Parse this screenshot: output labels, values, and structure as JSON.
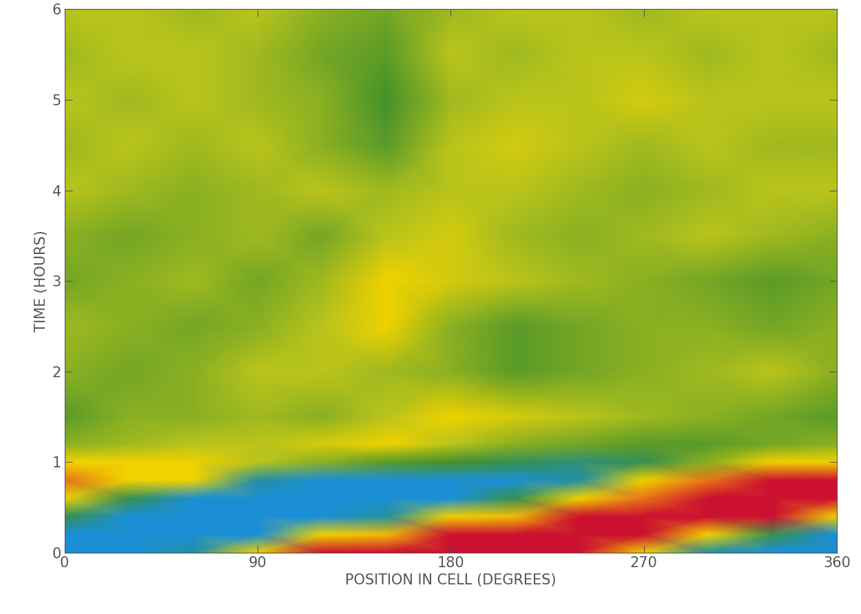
{
  "chart_data": {
    "type": "heatmap",
    "x_label": "POSITION IN CELL (DEGREES)",
    "y_label": "TIME (HOURS)",
    "xlim": [
      0,
      360
    ],
    "xticks": [
      0,
      90,
      180,
      270,
      360
    ],
    "ylim": [
      0,
      6
    ],
    "yticks": [
      0,
      1,
      2,
      3,
      4,
      5,
      6
    ],
    "x": [
      0,
      30,
      60,
      90,
      120,
      150,
      180,
      210,
      240,
      270,
      300,
      330,
      360
    ],
    "y": [
      0,
      0.2,
      0.4,
      0.6,
      0.8,
      1.0,
      1.2,
      1.5,
      2.0,
      2.5,
      3.0,
      3.5,
      4.0,
      4.5,
      5.0,
      5.5,
      6.0
    ],
    "color_range": [
      -1,
      1
    ],
    "cells": [
      [
        -1,
        -1,
        -0.5,
        0,
        0.6,
        1,
        1,
        1,
        0.6,
        0,
        -0.5,
        -1,
        -1
      ],
      [
        -0.7,
        -1,
        -1,
        -0.6,
        0,
        0.4,
        0.9,
        1,
        1,
        0.6,
        0,
        -0.4,
        -0.7
      ],
      [
        -0.4,
        -0.8,
        -1,
        -1,
        -0.9,
        -0.5,
        0,
        0.4,
        0.8,
        1,
        1,
        0.6,
        0
      ],
      [
        0,
        -0.4,
        -0.7,
        -0.85,
        -0.9,
        -0.9,
        -0.8,
        -0.4,
        0,
        0.5,
        0.85,
        0.9,
        0.6
      ],
      [
        0.5,
        0.2,
        0,
        -0.5,
        -0.8,
        -0.8,
        -0.8,
        -0.7,
        -0.5,
        0,
        0.5,
        0.8,
        0.8
      ],
      [
        0,
        0,
        0,
        -0.1,
        -0.2,
        -0.3,
        -0.35,
        -0.4,
        -0.45,
        -0.4,
        -0.2,
        0,
        0
      ],
      [
        -0.2,
        -0.15,
        -0.1,
        -0.1,
        -0.05,
        0,
        -0.1,
        -0.2,
        -0.25,
        -0.3,
        -0.3,
        -0.25,
        -0.2
      ],
      [
        -0.3,
        -0.2,
        -0.2,
        -0.15,
        -0.2,
        -0.1,
        0,
        -0.05,
        -0.1,
        -0.15,
        -0.2,
        -0.25,
        -0.3
      ],
      [
        -0.2,
        -0.25,
        -0.2,
        -0.1,
        -0.1,
        -0.15,
        -0.2,
        -0.3,
        -0.25,
        -0.2,
        -0.15,
        -0.1,
        -0.2
      ],
      [
        -0.15,
        -0.2,
        -0.25,
        -0.2,
        -0.1,
        0,
        -0.2,
        -0.3,
        -0.25,
        -0.2,
        -0.2,
        -0.25,
        -0.2
      ],
      [
        -0.25,
        -0.2,
        -0.15,
        -0.25,
        -0.15,
        0,
        -0.05,
        -0.1,
        -0.15,
        -0.2,
        -0.25,
        -0.3,
        -0.25
      ],
      [
        -0.2,
        -0.25,
        -0.2,
        -0.15,
        -0.25,
        -0.1,
        -0.05,
        -0.15,
        -0.2,
        -0.15,
        -0.1,
        -0.15,
        -0.2
      ],
      [
        -0.1,
        -0.15,
        -0.2,
        -0.15,
        -0.1,
        -0.15,
        -0.1,
        -0.1,
        -0.15,
        -0.2,
        -0.15,
        -0.1,
        -0.1
      ],
      [
        -0.15,
        -0.1,
        -0.15,
        -0.1,
        -0.2,
        -0.3,
        -0.1,
        -0.05,
        -0.1,
        -0.15,
        -0.1,
        -0.15,
        -0.15
      ],
      [
        -0.1,
        -0.15,
        -0.1,
        -0.15,
        -0.2,
        -0.35,
        -0.15,
        -0.1,
        -0.1,
        -0.05,
        -0.1,
        -0.1,
        -0.1
      ],
      [
        -0.15,
        -0.1,
        -0.1,
        -0.15,
        -0.25,
        -0.3,
        -0.1,
        -0.15,
        -0.1,
        -0.1,
        -0.15,
        -0.1,
        -0.15
      ],
      [
        -0.1,
        -0.1,
        -0.15,
        -0.1,
        -0.2,
        -0.25,
        -0.15,
        -0.1,
        -0.1,
        -0.15,
        -0.1,
        -0.1,
        -0.1
      ]
    ]
  }
}
